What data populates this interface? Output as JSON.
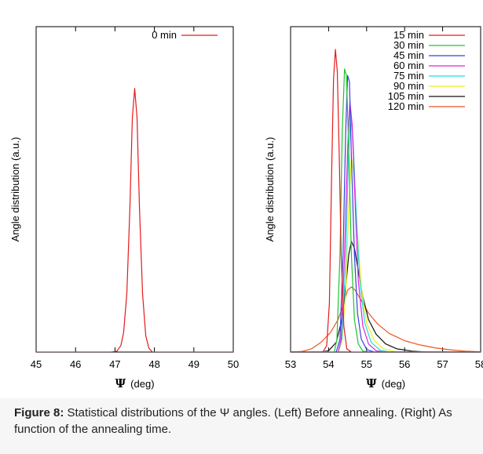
{
  "caption": {
    "label": "Figure 8:",
    "text": " Statistical distributions of the Ψ angles. (Left) Before annealing. (Right) As function of the annealing time."
  },
  "chart_data": [
    {
      "type": "line",
      "ylabel": "Angle distribution (a.u.)",
      "xlabel_symbol": "Ψ",
      "xlabel_unit": "(deg)",
      "xlim": [
        45,
        50
      ],
      "ylim": [
        0,
        1
      ],
      "xticks": [
        45,
        46,
        47,
        48,
        49,
        50
      ],
      "legend_position": "top-right",
      "series": [
        {
          "name": "0 min",
          "color": "#e41a1c",
          "points": [
            [
              45.0,
              0.0
            ],
            [
              46.9,
              0.0
            ],
            [
              47.05,
              0.003
            ],
            [
              47.15,
              0.02
            ],
            [
              47.22,
              0.06
            ],
            [
              47.3,
              0.18
            ],
            [
              47.38,
              0.45
            ],
            [
              47.44,
              0.72
            ],
            [
              47.5,
              0.81
            ],
            [
              47.56,
              0.72
            ],
            [
              47.62,
              0.45
            ],
            [
              47.7,
              0.18
            ],
            [
              47.78,
              0.05
            ],
            [
              47.86,
              0.012
            ],
            [
              47.95,
              0.0
            ],
            [
              50.0,
              0.0
            ]
          ]
        }
      ]
    },
    {
      "type": "line",
      "ylabel": "Angle distribution (a.u.)",
      "xlabel_symbol": "Ψ",
      "xlabel_unit": "(deg)",
      "xlim": [
        53,
        58
      ],
      "ylim": [
        0,
        1
      ],
      "xticks": [
        53,
        54,
        55,
        56,
        57,
        58
      ],
      "legend_position": "top-right",
      "series": [
        {
          "name": "15 min",
          "color": "#e41a1c",
          "points": [
            [
              53.0,
              0.0
            ],
            [
              53.85,
              0.0
            ],
            [
              53.95,
              0.02
            ],
            [
              54.02,
              0.15
            ],
            [
              54.08,
              0.55
            ],
            [
              54.13,
              0.84
            ],
            [
              54.18,
              0.93
            ],
            [
              54.23,
              0.86
            ],
            [
              54.28,
              0.6
            ],
            [
              54.33,
              0.3
            ],
            [
              54.4,
              0.08
            ],
            [
              54.48,
              0.01
            ],
            [
              54.6,
              0.0
            ],
            [
              58.0,
              0.0
            ]
          ]
        },
        {
          "name": "30 min",
          "color": "#22c32e",
          "points": [
            [
              53.0,
              0.0
            ],
            [
              54.15,
              0.0
            ],
            [
              54.22,
              0.04
            ],
            [
              54.3,
              0.3
            ],
            [
              54.36,
              0.68
            ],
            [
              54.42,
              0.87
            ],
            [
              54.47,
              0.85
            ],
            [
              54.53,
              0.62
            ],
            [
              54.6,
              0.3
            ],
            [
              54.68,
              0.1
            ],
            [
              54.78,
              0.025
            ],
            [
              54.9,
              0.003
            ],
            [
              55.1,
              0.0
            ],
            [
              58.0,
              0.0
            ]
          ]
        },
        {
          "name": "45 min",
          "color": "#3344dd",
          "points": [
            [
              53.0,
              0.0
            ],
            [
              54.2,
              0.0
            ],
            [
              54.3,
              0.04
            ],
            [
              54.38,
              0.3
            ],
            [
              54.45,
              0.68
            ],
            [
              54.5,
              0.85
            ],
            [
              54.55,
              0.83
            ],
            [
              54.6,
              0.6
            ],
            [
              54.68,
              0.3
            ],
            [
              54.76,
              0.12
            ],
            [
              54.86,
              0.04
            ],
            [
              55.0,
              0.008
            ],
            [
              55.2,
              0.0
            ],
            [
              58.0,
              0.0
            ]
          ]
        },
        {
          "name": "60 min",
          "color": "#dd22dd",
          "points": [
            [
              53.0,
              0.0
            ],
            [
              54.25,
              0.0
            ],
            [
              54.33,
              0.04
            ],
            [
              54.42,
              0.3
            ],
            [
              54.5,
              0.62
            ],
            [
              54.56,
              0.77
            ],
            [
              54.62,
              0.7
            ],
            [
              54.7,
              0.45
            ],
            [
              54.78,
              0.22
            ],
            [
              54.9,
              0.08
            ],
            [
              55.05,
              0.025
            ],
            [
              55.25,
              0.004
            ],
            [
              55.45,
              0.0
            ],
            [
              58.0,
              0.0
            ]
          ]
        },
        {
          "name": "75 min",
          "color": "#22dddd",
          "points": [
            [
              53.0,
              0.0
            ],
            [
              54.25,
              0.0
            ],
            [
              54.35,
              0.04
            ],
            [
              54.45,
              0.28
            ],
            [
              54.52,
              0.6
            ],
            [
              54.58,
              0.72
            ],
            [
              54.64,
              0.66
            ],
            [
              54.72,
              0.45
            ],
            [
              54.82,
              0.22
            ],
            [
              54.95,
              0.09
            ],
            [
              55.12,
              0.03
            ],
            [
              55.35,
              0.006
            ],
            [
              55.6,
              0.0
            ],
            [
              58.0,
              0.0
            ]
          ]
        },
        {
          "name": "90 min",
          "color": "#eeee22",
          "points": [
            [
              53.0,
              0.0
            ],
            [
              54.25,
              0.0
            ],
            [
              54.35,
              0.03
            ],
            [
              54.45,
              0.18
            ],
            [
              54.53,
              0.45
            ],
            [
              54.6,
              0.6
            ],
            [
              54.66,
              0.55
            ],
            [
              54.75,
              0.38
            ],
            [
              54.86,
              0.2
            ],
            [
              55.0,
              0.09
            ],
            [
              55.2,
              0.035
            ],
            [
              55.45,
              0.01
            ],
            [
              55.8,
              0.0
            ],
            [
              58.0,
              0.0
            ]
          ]
        },
        {
          "name": "105 min",
          "color": "#111111",
          "points": [
            [
              53.0,
              0.0
            ],
            [
              53.8,
              0.0
            ],
            [
              54.0,
              0.004
            ],
            [
              54.2,
              0.03
            ],
            [
              54.35,
              0.1
            ],
            [
              54.45,
              0.2
            ],
            [
              54.53,
              0.3
            ],
            [
              54.6,
              0.34
            ],
            [
              54.68,
              0.32
            ],
            [
              54.78,
              0.25
            ],
            [
              54.9,
              0.17
            ],
            [
              55.05,
              0.1
            ],
            [
              55.25,
              0.055
            ],
            [
              55.5,
              0.025
            ],
            [
              55.8,
              0.01
            ],
            [
              56.2,
              0.003
            ],
            [
              56.6,
              0.0
            ],
            [
              58.0,
              0.0
            ]
          ]
        },
        {
          "name": "120 min",
          "color": "#ee5522",
          "points": [
            [
              53.0,
              0.0
            ],
            [
              53.3,
              0.002
            ],
            [
              53.55,
              0.01
            ],
            [
              53.8,
              0.03
            ],
            [
              54.05,
              0.06
            ],
            [
              54.25,
              0.1
            ],
            [
              54.4,
              0.15
            ],
            [
              54.5,
              0.19
            ],
            [
              54.6,
              0.2
            ],
            [
              54.7,
              0.19
            ],
            [
              54.85,
              0.16
            ],
            [
              55.05,
              0.12
            ],
            [
              55.3,
              0.085
            ],
            [
              55.6,
              0.057
            ],
            [
              56.0,
              0.035
            ],
            [
              56.4,
              0.022
            ],
            [
              56.8,
              0.013
            ],
            [
              57.2,
              0.007
            ],
            [
              57.6,
              0.003
            ],
            [
              58.0,
              0.001
            ]
          ]
        }
      ]
    }
  ]
}
